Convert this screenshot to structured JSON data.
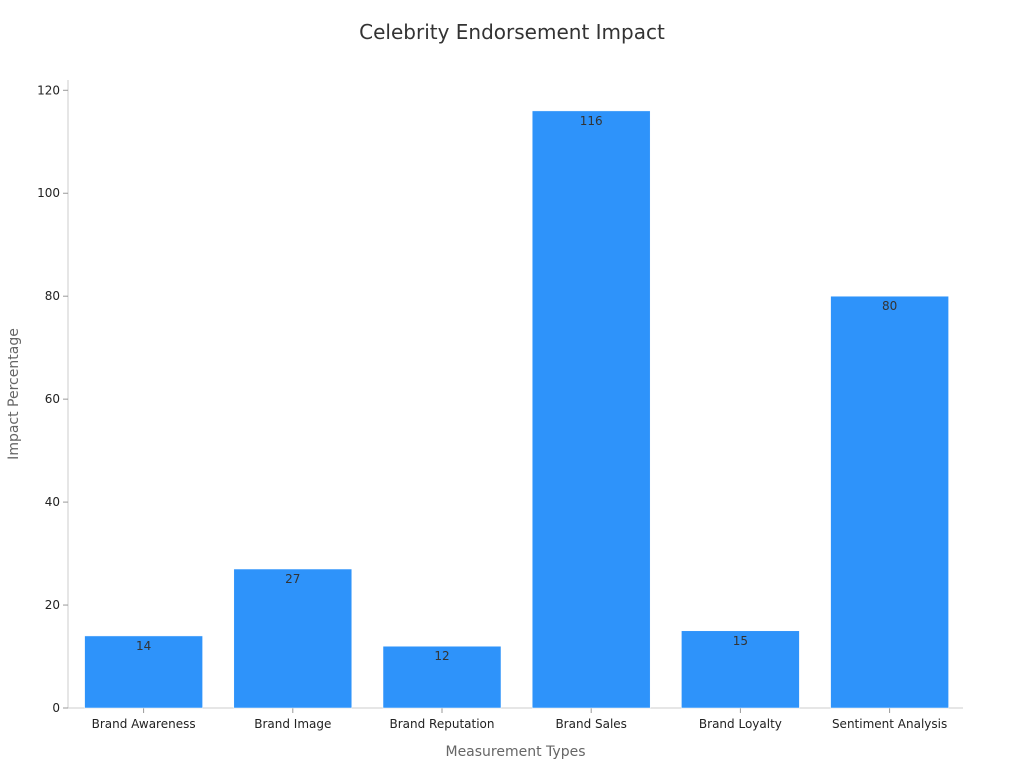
{
  "chart_data": {
    "type": "bar",
    "title": "Celebrity Endorsement Impact",
    "xlabel": "Measurement Types",
    "ylabel": "Impact Percentage",
    "categories": [
      "Brand Awareness",
      "Brand Image",
      "Brand Reputation",
      "Brand Sales",
      "Brand Loyalty",
      "Sentiment Analysis"
    ],
    "values": [
      14,
      27,
      12,
      116,
      15,
      80
    ],
    "ylim": [
      0,
      122
    ],
    "yticks": [
      0,
      20,
      40,
      60,
      80,
      100,
      120
    ],
    "grid": false,
    "bar_color": "#2e93fa",
    "data_labels": true
  }
}
